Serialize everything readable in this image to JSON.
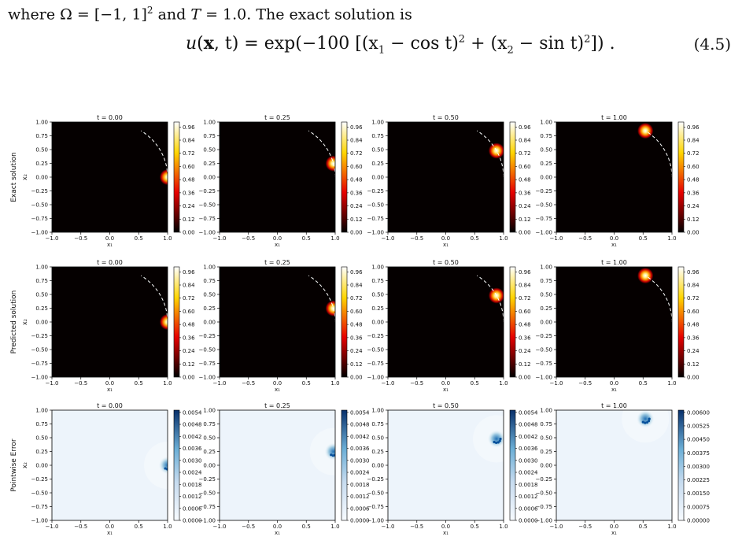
{
  "text": {
    "intro_where": "where",
    "intro_omega": "Ω = [−1, 1]",
    "intro_sup": "2",
    "intro_and": " and ",
    "intro_T": "T",
    "intro_tail": " = 1.0. The exact solution is",
    "eq_lhs_u": "u",
    "eq_lhs_args_open": "(",
    "eq_lhs_x": "x",
    "eq_lhs_args_close": ", t) = exp(−100 [(x",
    "eq_sub1": "1",
    "eq_mid1": " − cos t)",
    "eq_sq1": "2",
    "eq_mid2": " + (x",
    "eq_sub2": "2",
    "eq_mid3": " − sin t)",
    "eq_sq2": "2",
    "eq_end": "]) .",
    "eq_number": "(4.5)"
  },
  "figure": {
    "row_labels": [
      "Exact solution",
      "Predicted solution",
      "Pointwise Error"
    ],
    "times": [
      0.0,
      0.25,
      0.5,
      1.0
    ],
    "panel_titles": [
      "t = 0.00",
      "t = 0.25",
      "t = 0.50",
      "t = 1.00"
    ],
    "x_label": "x₁",
    "y_label": "x₂",
    "axis_ticks": [
      "−1.0",
      "−0.5",
      "0.0",
      "0.5",
      "1.0"
    ],
    "y_ticks": [
      "−1.00",
      "−0.75",
      "−0.50",
      "−0.25",
      "0.00",
      "0.25",
      "0.50",
      "0.75",
      "1.00"
    ],
    "colormaps": {
      "solution": "hot",
      "error": "Blues"
    },
    "colorbars": {
      "solution": [
        "0.00",
        "0.12",
        "0.24",
        "0.36",
        "0.48",
        "0.60",
        "0.72",
        "0.84",
        "0.96"
      ],
      "error": [
        "0.0000",
        "0.0006",
        "0.0012",
        "0.0018",
        "0.0024",
        "0.0030",
        "0.0036",
        "0.0042",
        "0.0048",
        "0.0054"
      ],
      "error_last": [
        "0.00000",
        "0.00075",
        "0.00150",
        "0.00225",
        "0.00300",
        "0.00375",
        "0.00450",
        "0.00525",
        "0.00600"
      ]
    },
    "trajectory_style": "white dashed arc"
  }
}
